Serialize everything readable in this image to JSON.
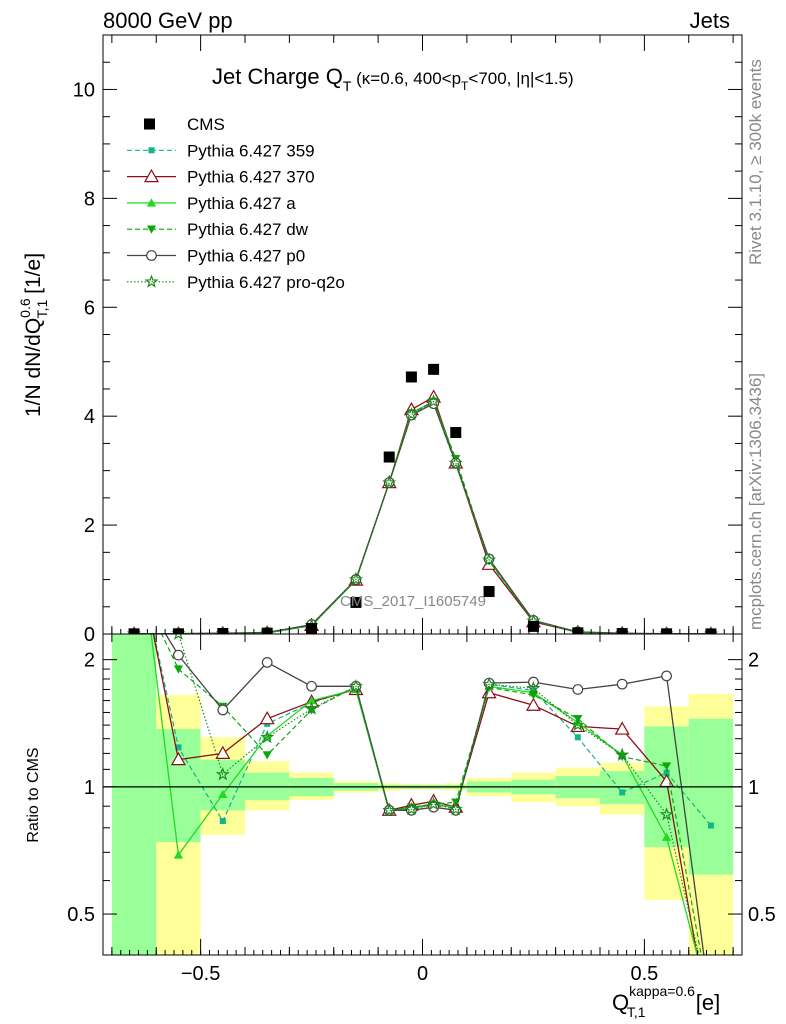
{
  "header": {
    "left": "8000 GeV pp",
    "right": "Jets"
  },
  "side": {
    "rivet": "Rivet 3.1.10, ≥ 300k events",
    "mcplots": "mcplots.cern.ch [arXiv:1306.3436]"
  },
  "watermark": "CMS_2017_I1605749",
  "colors": {
    "cms": "#000000",
    "p359": "#13b48c",
    "p370": "#8b0e1a",
    "pa": "#22d922",
    "pdw": "#0aa80a",
    "pp0": "#444444",
    "pq2o": "#1f8a1f",
    "band_yellow": "#ffff99",
    "band_green": "#99ff99"
  },
  "chart_data": [
    {
      "type": "line",
      "title": "Jet Charge Q_T (κ=0.6, 400<p_T<700, |η|<1.5)",
      "title_main": "Jet Charge Q",
      "title_sub": "T",
      "title_note": "(κ=0.6, 400<p",
      "title_note_sub": "T",
      "title_note_end": "<700, |η|<1.5)",
      "ylabel": "1/N dN/dQ^0.6_T,1 [1/e]",
      "ylabel_main": "1/N dN/dQ",
      "ylabel_sup": "0.6",
      "ylabel_sub": "T,1",
      "ylabel_unit": "[1/e]",
      "xlim": [
        -0.72,
        0.72
      ],
      "ylim": [
        0,
        11
      ],
      "yticks": [
        0,
        2,
        4,
        6,
        8,
        10
      ],
      "legend_position": "top-left",
      "x": [
        -0.65,
        -0.55,
        -0.45,
        -0.35,
        -0.25,
        -0.15,
        -0.075,
        -0.025,
        0.025,
        0.075,
        0.15,
        0.25,
        0.35,
        0.45,
        0.55,
        0.65
      ],
      "series": [
        {
          "name": "CMS",
          "key": "cms",
          "values": [
            0.003,
            0.004,
            0.009,
            0.015,
            0.1,
            0.58,
            3.25,
            4.72,
            4.86,
            3.7,
            0.78,
            0.14,
            0.022,
            0.008,
            0.003,
            0.0015
          ]
        },
        {
          "name": "Pythia 6.427 359",
          "key": "p359",
          "values": [
            0.003,
            0.005,
            0.0075,
            0.021,
            0.158,
            0.99,
            2.78,
            4.03,
            4.24,
            3.11,
            1.36,
            0.25,
            0.03,
            0.008,
            0.0032,
            0.0012
          ]
        },
        {
          "name": "Pythia 6.427 370",
          "key": "p370",
          "values": [
            0.003,
            0.0046,
            0.0108,
            0.0217,
            0.159,
            0.99,
            2.78,
            4.12,
            4.35,
            3.14,
            1.28,
            0.224,
            0.031,
            0.011,
            0.0031,
            0.0012
          ]
        },
        {
          "name": "Pythia 6.427 a",
          "key": "pa",
          "values": [
            0.003,
            0.0027,
            0.0086,
            0.0198,
            0.16,
            0.985,
            2.78,
            4.06,
            4.27,
            3.14,
            1.35,
            0.245,
            0.031,
            0.009,
            0.0027,
            0.0011
          ]
        },
        {
          "name": "Pythia 6.427 dw",
          "key": "pdw",
          "values": [
            0.003,
            0.0076,
            0.011,
            0.018,
            0.152,
            1.0,
            2.78,
            4.06,
            4.27,
            3.22,
            1.34,
            0.24,
            0.032,
            0.0095,
            0.0032,
            0.0011
          ]
        },
        {
          "name": "Pythia 6.427 p0",
          "key": "pp0",
          "values": [
            0.003,
            0.0082,
            0.0152,
            0.0298,
            0.173,
            1.0,
            2.78,
            4.02,
            4.23,
            3.14,
            1.38,
            0.249,
            0.038,
            0.0138,
            0.0055,
            0.0014
          ]
        },
        {
          "name": "Pythia 6.427 pro-q2o",
          "key": "pq2o",
          "values": [
            0.003,
            0.0092,
            0.0096,
            0.019,
            0.153,
            1.0,
            2.78,
            4.03,
            4.27,
            3.14,
            1.36,
            0.24,
            0.031,
            0.0095,
            0.0026,
            0.001
          ]
        }
      ]
    },
    {
      "type": "line",
      "ylabel": "Ratio to CMS",
      "xlabel": "Q_T,1^kappa=0.6 [e]",
      "xlabel_main": "Q",
      "xlabel_sup": "kappa=0.6",
      "xlabel_sub": "T,1",
      "xlabel_unit": "[e]",
      "xlim": [
        -0.72,
        0.72
      ],
      "ylim": [
        0.4,
        2.3
      ],
      "yscale": "log",
      "yticks": [
        0.5,
        1,
        2
      ],
      "xticks": [
        -0.5,
        0,
        0.5
      ],
      "x": [
        -0.65,
        -0.55,
        -0.45,
        -0.35,
        -0.25,
        -0.15,
        -0.075,
        -0.025,
        0.025,
        0.075,
        0.15,
        0.25,
        0.35,
        0.45,
        0.55,
        0.65
      ],
      "bins": [
        [
          -0.7,
          -0.6
        ],
        [
          -0.6,
          -0.5
        ],
        [
          -0.5,
          -0.4
        ],
        [
          -0.4,
          -0.3
        ],
        [
          -0.3,
          -0.2
        ],
        [
          -0.2,
          -0.1
        ],
        [
          -0.1,
          -0.05
        ],
        [
          -0.05,
          0
        ],
        [
          0,
          0.05
        ],
        [
          0.05,
          0.1
        ],
        [
          0.1,
          0.2
        ],
        [
          0.2,
          0.3
        ],
        [
          0.3,
          0.4
        ],
        [
          0.4,
          0.5
        ],
        [
          0.5,
          0.6
        ],
        [
          0.6,
          0.7
        ]
      ],
      "band_yellow": [
        [
          0.35,
          2.5
        ],
        [
          0.35,
          1.65
        ],
        [
          0.77,
          1.31
        ],
        [
          0.88,
          1.15
        ],
        [
          0.93,
          1.08
        ],
        [
          0.97,
          1.03
        ],
        [
          0.98,
          1.02
        ],
        [
          0.985,
          1.015
        ],
        [
          0.985,
          1.015
        ],
        [
          0.98,
          1.02
        ],
        [
          0.95,
          1.05
        ],
        [
          0.92,
          1.08
        ],
        [
          0.9,
          1.11
        ],
        [
          0.86,
          1.14
        ],
        [
          0.54,
          1.55
        ],
        [
          0.35,
          1.66
        ]
      ],
      "band_green": [
        [
          0.35,
          2.5
        ],
        [
          0.74,
          1.37
        ],
        [
          0.88,
          1.16
        ],
        [
          0.93,
          1.08
        ],
        [
          0.95,
          1.05
        ],
        [
          0.98,
          1.02
        ],
        [
          0.99,
          1.01
        ],
        [
          0.99,
          1.01
        ],
        [
          0.99,
          1.01
        ],
        [
          0.99,
          1.01
        ],
        [
          0.97,
          1.03
        ],
        [
          0.96,
          1.04
        ],
        [
          0.94,
          1.06
        ],
        [
          0.91,
          1.09
        ],
        [
          0.72,
          1.39
        ],
        [
          0.62,
          1.45
        ]
      ],
      "series": [
        {
          "name": "Pythia 6.427 359",
          "key": "p359",
          "values": [
            null,
            1.24,
            0.83,
            1.41,
            1.58,
            1.71,
            0.88,
            0.89,
            0.905,
            0.895,
            1.75,
            1.69,
            1.31,
            0.97,
            1.08,
            0.81
          ]
        },
        {
          "name": "Pythia 6.427 370",
          "key": "p370",
          "values": [
            null,
            1.16,
            1.2,
            1.45,
            1.59,
            1.7,
            0.88,
            0.905,
            0.925,
            0.895,
            1.67,
            1.56,
            1.39,
            1.37,
            1.03,
            0.26
          ]
        },
        {
          "name": "Pythia 6.427 a",
          "key": "pa",
          "values": [
            null,
            0.69,
            0.96,
            1.32,
            1.6,
            1.7,
            0.875,
            0.895,
            0.91,
            0.895,
            1.73,
            1.67,
            1.42,
            1.19,
            0.76,
            0.3
          ]
        },
        {
          "name": "Pythia 6.427 dw",
          "key": "pdw",
          "values": [
            null,
            1.9,
            1.55,
            1.19,
            1.52,
            1.73,
            0.88,
            0.895,
            0.91,
            0.92,
            1.72,
            1.65,
            1.45,
            1.18,
            1.12,
            0.3
          ]
        },
        {
          "name": "Pythia 6.427 p0",
          "key": "pp0",
          "values": [
            null,
            2.05,
            1.52,
            1.97,
            1.73,
            1.73,
            0.88,
            0.88,
            0.895,
            0.88,
            1.76,
            1.77,
            1.7,
            1.75,
            1.83,
            0.3
          ]
        },
        {
          "name": "Pythia 6.427 pro-q2o",
          "key": "pq2o",
          "values": [
            null,
            2.3,
            1.07,
            1.31,
            1.53,
            1.73,
            0.88,
            0.885,
            0.91,
            0.885,
            1.75,
            1.71,
            1.4,
            1.19,
            0.86,
            0.3
          ]
        }
      ]
    }
  ]
}
